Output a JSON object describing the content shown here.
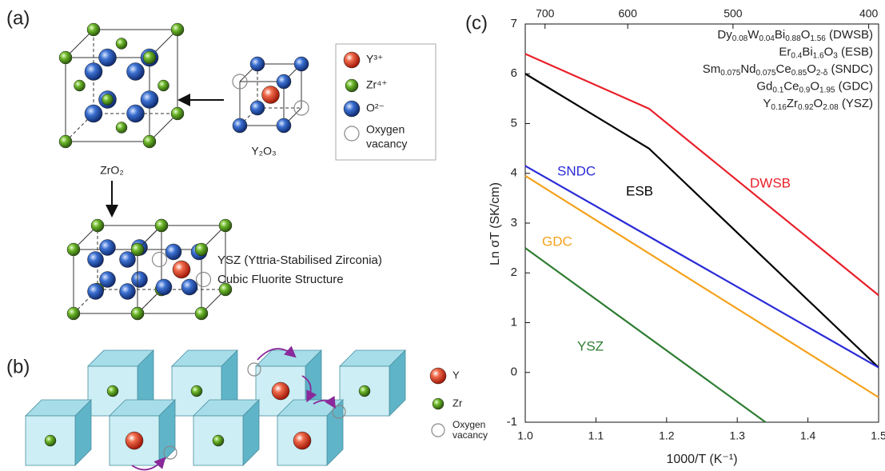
{
  "panel_a": {
    "label": "(a)",
    "zro2": "ZrO₂",
    "y2o3": "Y₂O₃",
    "legend": [
      "Y³⁺",
      "Zr⁴⁺",
      "O²⁻",
      "Oxygen",
      "vacancy"
    ],
    "ysz_name": "YSZ (Yttria-Stabilised Zirconia)",
    "ysz_structure": "Cubic Fluorite Structure"
  },
  "panel_b": {
    "label": "(b)",
    "legend": [
      "Y",
      "Zr",
      "Oxygen",
      "vacancy"
    ]
  },
  "chart_data": {
    "type": "line",
    "label": "(c)",
    "xlabel": "1000/T (K⁻¹)",
    "ylabel": "Ln σT (SK/cm)",
    "xlim": [
      1.0,
      1.5
    ],
    "ylim": [
      -1,
      7
    ],
    "xticks": [
      {
        "value": 1.0,
        "label": "1.0"
      },
      1.1,
      1.2,
      1.3,
      1.4,
      1.5
    ],
    "yticks": [
      -1,
      0,
      1,
      2,
      3,
      4,
      5,
      6,
      7
    ],
    "x2ticks": [
      {
        "value": 1.028,
        "label": "700"
      },
      {
        "value": 1.145,
        "label": "600"
      },
      {
        "value": 1.294,
        "label": "500"
      },
      {
        "value": 1.486,
        "label": "400"
      }
    ],
    "legend_formulas": [
      [
        "Dy",
        "0.08",
        "W",
        "0.04",
        "Bi",
        "0.88",
        "O",
        "1.56",
        " (DWSB)"
      ],
      [
        "Er",
        "0.4",
        "Bi",
        "1.6",
        "O",
        "3",
        " (ESB)"
      ],
      [
        "Sm",
        "0.075",
        "Nd",
        "0.075",
        "Ce",
        "0.85",
        "O",
        "2-δ",
        " (SNDC)"
      ],
      [
        "Gd",
        "0.1",
        "Ce",
        "0.9",
        "O",
        "1.95",
        " (GDC)"
      ],
      [
        "Y",
        "0.16",
        "Zr",
        "0.92",
        "O",
        "2.08",
        " (YSZ)"
      ]
    ],
    "series": [
      {
        "name": "DWSB",
        "color": "#e8202a",
        "x": [
          1.0,
          1.175,
          1.5
        ],
        "values": [
          6.4,
          5.3,
          1.55
        ]
      },
      {
        "name": "ESB",
        "color": "#000000",
        "x": [
          1.0,
          1.175,
          1.5
        ],
        "values": [
          6.0,
          4.5,
          0.1
        ]
      },
      {
        "name": "SNDC",
        "color": "#2b2bd8",
        "x": [
          1.0,
          1.5
        ],
        "values": [
          4.15,
          0.1
        ]
      },
      {
        "name": "GDC",
        "color": "#f5a21c",
        "x": [
          1.0,
          1.5
        ],
        "values": [
          3.95,
          -0.5
        ]
      },
      {
        "name": "YSZ",
        "color": "#2e7d32",
        "x": [
          1.0,
          1.34
        ],
        "values": [
          2.5,
          -1.0
        ]
      }
    ]
  }
}
